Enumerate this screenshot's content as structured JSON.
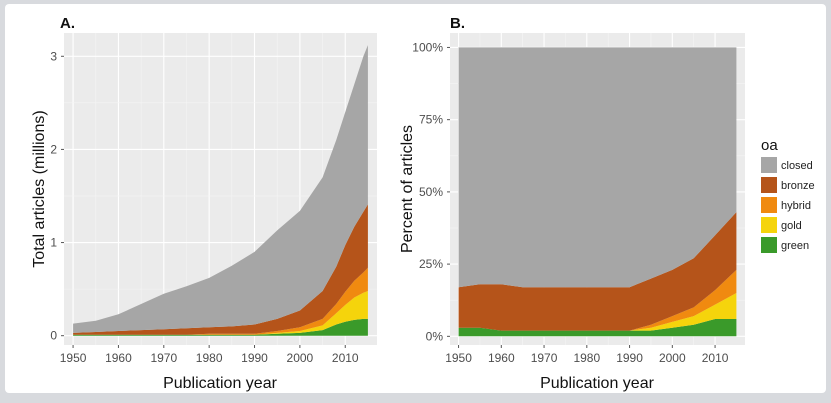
{
  "chart_data": [
    {
      "panel_label": "A.",
      "type": "area",
      "stacked": true,
      "xlabel": "Publication year",
      "ylabel": "Total articles (millions)",
      "xlim": [
        1948,
        2017
      ],
      "ylim": [
        -0.1,
        3.25
      ],
      "x_ticks": [
        1950,
        1960,
        1970,
        1980,
        1990,
        2000,
        2010
      ],
      "y_ticks": [
        0,
        1,
        2,
        3
      ],
      "grid": true,
      "x": [
        1950,
        1955,
        1960,
        1965,
        1970,
        1975,
        1980,
        1985,
        1990,
        1995,
        2000,
        2005,
        2008,
        2010,
        2012,
        2014,
        2015
      ],
      "series": [
        {
          "name": "green",
          "color": "#3a9a2a",
          "values": [
            0.01,
            0.01,
            0.01,
            0.01,
            0.01,
            0.01,
            0.01,
            0.01,
            0.01,
            0.02,
            0.03,
            0.06,
            0.12,
            0.15,
            0.17,
            0.18,
            0.18
          ]
        },
        {
          "name": "gold",
          "color": "#f5d40c",
          "values": [
            0.0,
            0.0,
            0.0,
            0.0,
            0.0,
            0.0,
            0.0,
            0.0,
            0.0,
            0.01,
            0.02,
            0.05,
            0.12,
            0.18,
            0.24,
            0.28,
            0.3
          ]
        },
        {
          "name": "hybrid",
          "color": "#f08a10",
          "values": [
            0.0,
            0.0,
            0.0,
            0.0,
            0.0,
            0.0,
            0.01,
            0.01,
            0.01,
            0.02,
            0.04,
            0.07,
            0.1,
            0.14,
            0.18,
            0.22,
            0.25
          ]
        },
        {
          "name": "bronze",
          "color": "#b5541a",
          "values": [
            0.02,
            0.03,
            0.04,
            0.05,
            0.06,
            0.07,
            0.07,
            0.08,
            0.1,
            0.13,
            0.18,
            0.3,
            0.4,
            0.5,
            0.58,
            0.65,
            0.68
          ]
        },
        {
          "name": "closed",
          "color": "#a6a6a6",
          "values": [
            0.1,
            0.12,
            0.18,
            0.28,
            0.38,
            0.45,
            0.53,
            0.65,
            0.78,
            0.95,
            1.07,
            1.22,
            1.36,
            1.43,
            1.53,
            1.67,
            1.71
          ]
        }
      ]
    },
    {
      "panel_label": "B.",
      "type": "area",
      "stacked": true,
      "percent": true,
      "xlabel": "Publication year",
      "ylabel": "Percent of articles",
      "xlim": [
        1948,
        2017
      ],
      "ylim": [
        -3,
        105
      ],
      "x_ticks": [
        1950,
        1960,
        1970,
        1980,
        1990,
        2000,
        2010
      ],
      "y_ticks": [
        0,
        25,
        50,
        75,
        100
      ],
      "y_tick_labels": [
        "0%",
        "25%",
        "50%",
        "75%",
        "100%"
      ],
      "grid": true,
      "legend_title": "oa",
      "legend_position": "right",
      "x": [
        1950,
        1955,
        1960,
        1965,
        1970,
        1975,
        1980,
        1985,
        1990,
        1995,
        2000,
        2005,
        2010,
        2015
      ],
      "series": [
        {
          "name": "green",
          "color": "#3a9a2a",
          "values": [
            3,
            3,
            2,
            2,
            2,
            2,
            2,
            2,
            2,
            2,
            3,
            4,
            6,
            6
          ]
        },
        {
          "name": "gold",
          "color": "#f5d40c",
          "values": [
            0,
            0,
            0,
            0,
            0,
            0,
            0,
            0,
            0,
            1,
            2,
            3,
            5,
            9
          ]
        },
        {
          "name": "hybrid",
          "color": "#f08a10",
          "values": [
            0,
            0,
            0,
            0,
            0,
            0,
            0,
            0,
            0,
            1,
            2,
            3,
            5,
            8
          ]
        },
        {
          "name": "bronze",
          "color": "#b5541a",
          "values": [
            14,
            15,
            16,
            15,
            15,
            15,
            15,
            15,
            15,
            16,
            16,
            17,
            19,
            20
          ]
        },
        {
          "name": "closed",
          "color": "#a6a6a6",
          "values": [
            83,
            82,
            82,
            83,
            83,
            83,
            83,
            83,
            83,
            80,
            77,
            73,
            65,
            57
          ]
        }
      ]
    }
  ],
  "legend": {
    "title": "oa",
    "items": [
      {
        "name": "closed",
        "color": "#a6a6a6"
      },
      {
        "name": "bronze",
        "color": "#b5541a"
      },
      {
        "name": "hybrid",
        "color": "#f08a10"
      },
      {
        "name": "gold",
        "color": "#f5d40c"
      },
      {
        "name": "green",
        "color": "#3a9a2a"
      }
    ]
  }
}
